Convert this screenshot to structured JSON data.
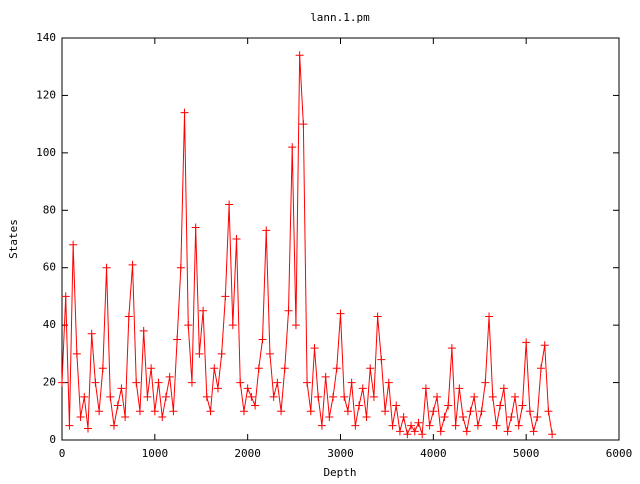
{
  "chart_data": {
    "type": "line",
    "title": "lann.1.pm",
    "x_label": "Depth",
    "y_label": "States",
    "x": [
      0,
      40,
      80,
      120,
      160,
      200,
      240,
      280,
      320,
      360,
      400,
      440,
      480,
      520,
      560,
      600,
      640,
      680,
      720,
      760,
      800,
      840,
      880,
      920,
      960,
      1000,
      1040,
      1080,
      1120,
      1160,
      1200,
      1240,
      1280,
      1320,
      1360,
      1400,
      1440,
      1480,
      1520,
      1560,
      1600,
      1640,
      1680,
      1720,
      1760,
      1800,
      1840,
      1880,
      1920,
      1960,
      2000,
      2040,
      2080,
      2120,
      2160,
      2200,
      2240,
      2280,
      2320,
      2360,
      2400,
      2440,
      2480,
      2520,
      2560,
      2600,
      2640,
      2680,
      2720,
      2760,
      2800,
      2840,
      2880,
      2920,
      2960,
      3000,
      3040,
      3080,
      3120,
      3160,
      3200,
      3240,
      3280,
      3320,
      3360,
      3400,
      3440,
      3480,
      3520,
      3560,
      3600,
      3640,
      3680,
      3720,
      3760,
      3800,
      3840,
      3880,
      3920,
      3960,
      4000,
      4040,
      4080,
      4120,
      4160,
      4200,
      4240,
      4280,
      4320,
      4360,
      4400,
      4440,
      4480,
      4520,
      4560,
      4600,
      4640,
      4680,
      4720,
      4760,
      4800,
      4840,
      4880,
      4920,
      4960,
      5000,
      5040,
      5080,
      5120,
      5160,
      5200,
      5240,
      5280
    ],
    "series": [
      {
        "name": "lann.1.pm",
        "color": "#ff0000",
        "values": [
          20,
          50,
          5,
          68,
          30,
          8,
          15,
          4,
          37,
          20,
          10,
          25,
          60,
          15,
          5,
          12,
          18,
          8,
          43,
          61,
          20,
          10,
          38,
          15,
          25,
          10,
          20,
          8,
          15,
          22,
          10,
          35,
          60,
          114,
          40,
          20,
          74,
          30,
          45,
          15,
          10,
          25,
          18,
          30,
          50,
          82,
          40,
          70,
          20,
          10,
          18,
          15,
          12,
          25,
          35,
          73,
          30,
          15,
          20,
          10,
          25,
          45,
          102,
          40,
          134,
          110,
          20,
          10,
          32,
          15,
          5,
          22,
          8,
          15,
          25,
          44,
          15,
          10,
          20,
          5,
          12,
          18,
          8,
          25,
          15,
          43,
          28,
          10,
          20,
          5,
          12,
          3,
          8,
          2,
          5,
          3,
          6,
          2,
          18,
          5,
          10,
          15,
          3,
          8,
          12,
          32,
          5,
          18,
          8,
          3,
          10,
          15,
          5,
          10,
          20,
          43,
          15,
          5,
          12,
          18,
          3,
          8,
          15,
          5,
          12,
          34,
          10,
          3,
          8,
          25,
          33,
          10,
          2
        ]
      }
    ],
    "xlim": [
      0,
      6000
    ],
    "xticks": [
      0,
      1000,
      2000,
      3000,
      4000,
      5000,
      6000
    ],
    "ylim": [
      0,
      140
    ],
    "yticks": [
      0,
      20,
      40,
      60,
      80,
      100,
      120,
      140
    ]
  }
}
